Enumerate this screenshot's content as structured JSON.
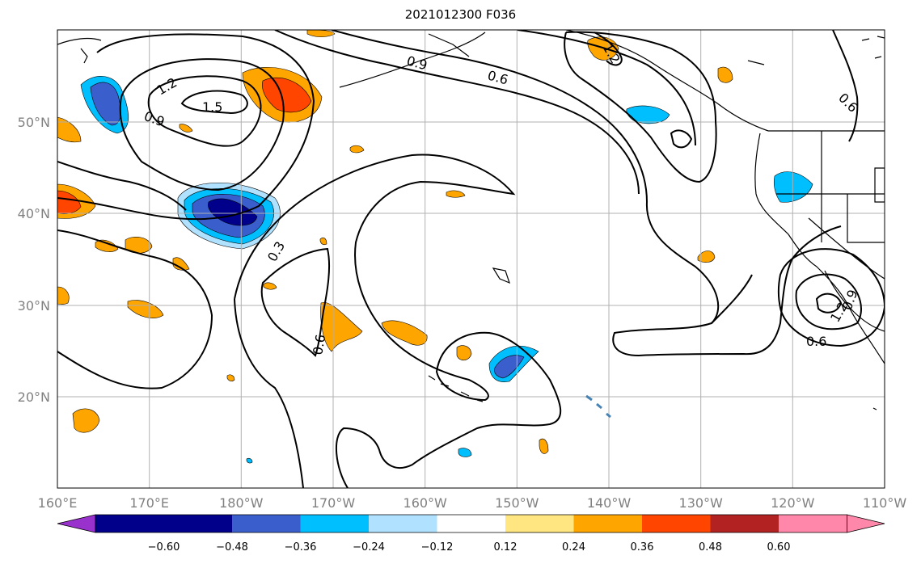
{
  "title": "2021012300 F036",
  "lon_labels": [
    "160°E",
    "170°E",
    "180°W",
    "170°W",
    "160°W",
    "150°W",
    "140°W",
    "130°W",
    "120°W",
    "110°W"
  ],
  "lat_labels": [
    "50°N",
    "40°N",
    "30°N",
    "20°N"
  ],
  "colorbar": {
    "tick_labels": [
      "−0.60",
      "−0.48",
      "−0.36",
      "−0.24",
      "−0.12",
      "0.12",
      "0.24",
      "0.36",
      "0.48",
      "0.60"
    ],
    "colors": [
      "#9932cc",
      "#00008b",
      "#3a5fcd",
      "#00bfff",
      "#b0e2ff",
      "#ffffff",
      "#ffe680",
      "#ffa500",
      "#ff4500",
      "#b22222",
      "#ff88aa"
    ]
  },
  "contour_labels": [
    "1.5",
    "1.2",
    "0.9",
    "0.9",
    "0.6",
    "1.2",
    "0.6",
    "0.3",
    "0.6",
    "0.6",
    "0.9",
    "1.2"
  ]
}
